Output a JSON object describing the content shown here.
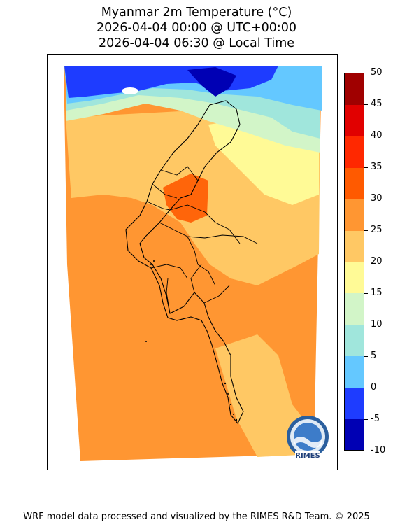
{
  "title": {
    "line1": "Myanmar 2m Temperature (°C)",
    "line2": "2026-04-04 00:00 @ UTC+00:00",
    "line3": "2026-04-04 06:30 @ Local Time"
  },
  "colorbar": {
    "min": -10,
    "max": 50,
    "step": 5,
    "ticks": [
      "50",
      "45",
      "40",
      "35",
      "30",
      "25",
      "20",
      "15",
      "10",
      "5",
      "0",
      "-5",
      "-10"
    ],
    "colors": [
      "#0000b4",
      "#1e3cff",
      "#64c8ff",
      "#a0e6dc",
      "#d2f5c8",
      "#fffa96",
      "#ffc864",
      "#ff9632",
      "#ff5a00",
      "#ff2800",
      "#e10000",
      "#a00000"
    ]
  },
  "logo": {
    "text": "RIMES"
  },
  "footer": "WRF model data processed and visualized by the RIMES R&D Team. © 2025"
}
